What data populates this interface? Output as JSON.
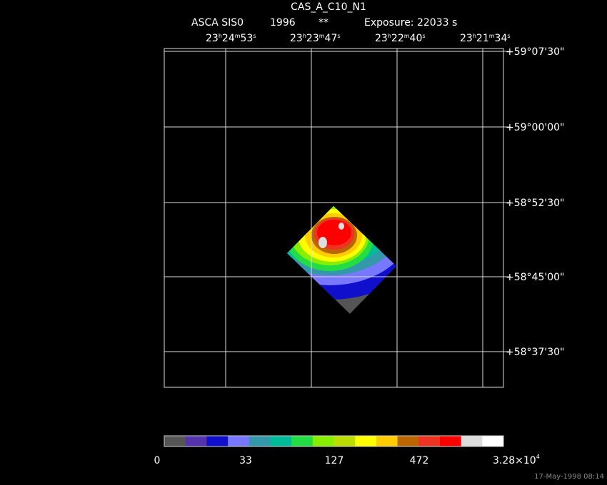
{
  "header": {
    "title": "CAS_A_C10_N1",
    "instrument": "ASCA SIS0",
    "year": "1996",
    "flag": "**",
    "exposure": "Exposure: 22033 s"
  },
  "ra_labels": [
    [
      "23",
      "h",
      "24",
      "m",
      "53",
      "s"
    ],
    [
      "23",
      "h",
      "23",
      "m",
      "47",
      "s"
    ],
    [
      "23",
      "h",
      "22",
      "m",
      "40",
      "s"
    ],
    [
      "23",
      "h",
      "21",
      "m",
      "34",
      "s"
    ]
  ],
  "dec_labels": [
    "+59°07'30\"",
    "+59°00'00\"",
    "+58°52'30\"",
    "+58°45'00\"",
    "+58°37'30\""
  ],
  "colorbar_labels": [
    "0",
    "33",
    "127",
    "472",
    [
      "3.28×10",
      "4"
    ]
  ],
  "footer": {
    "timestamp": "17-May-1998 08:14"
  }
}
